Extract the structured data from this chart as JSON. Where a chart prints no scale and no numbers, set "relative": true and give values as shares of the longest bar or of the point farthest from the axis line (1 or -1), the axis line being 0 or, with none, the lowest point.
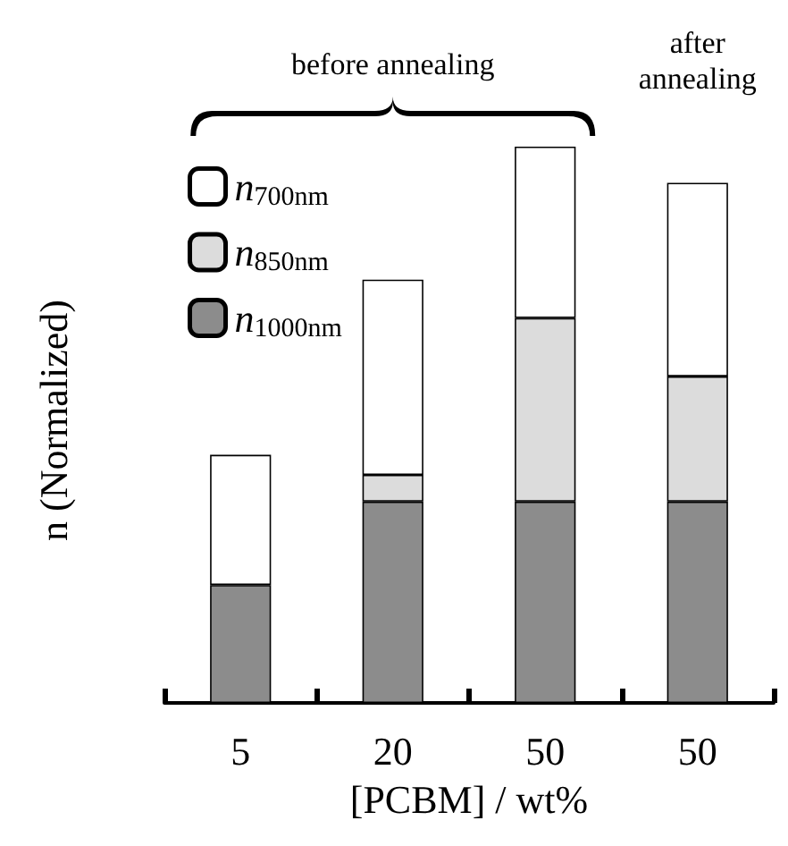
{
  "chart_data": {
    "type": "bar",
    "stacked": true,
    "relative": true,
    "xlabel": "[PCBM] / wt%",
    "ylabel": "n (Normalized)",
    "categories": [
      "5",
      "20",
      "50",
      "50"
    ],
    "annotations": [
      "before annealing",
      "after\nannealing"
    ],
    "legend": "top left",
    "series": [
      {
        "name": "n$_{1000nm}$",
        "color": "#8c8c8c",
        "values": [
          0.212,
          0.362,
          0.362,
          0.362
        ]
      },
      {
        "name": "n$_{850nm}$",
        "color": "#dcdcdc",
        "values": [
          null,
          0.048,
          0.33,
          0.225
        ]
      },
      {
        "name": "n$_{700nm}$",
        "color": "#ffffff",
        "values": [
          0.234,
          0.351,
          0.308,
          0.348
        ]
      }
    ]
  }
}
